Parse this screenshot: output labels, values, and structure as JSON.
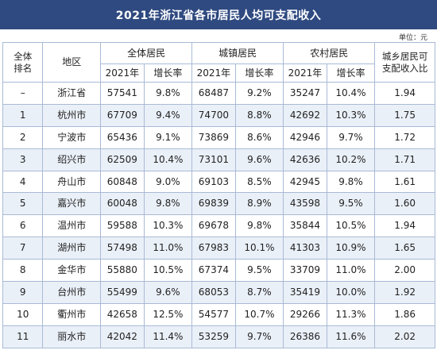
{
  "title": "2021年浙江省各市居民人均可支配收入",
  "unit": "单位：元",
  "headers": {
    "rank": "全体\n排名",
    "area": "地区",
    "all": "全体居民",
    "urban": "城镇居民",
    "rural": "农村居民",
    "ratio": "城乡居民可\n支配收入比",
    "year": "2021年",
    "growth": "增长率"
  },
  "rows": [
    {
      "rank": "–",
      "area": "浙江省",
      "all_y": "57541",
      "all_g": "9.8%",
      "urb_y": "68487",
      "urb_g": "9.2%",
      "rur_y": "35247",
      "rur_g": "10.4%",
      "ratio": "1.94"
    },
    {
      "rank": "1",
      "area": "杭州市",
      "all_y": "67709",
      "all_g": "9.4%",
      "urb_y": "74700",
      "urb_g": "8.8%",
      "rur_y": "42692",
      "rur_g": "10.3%",
      "ratio": "1.75"
    },
    {
      "rank": "2",
      "area": "宁波市",
      "all_y": "65436",
      "all_g": "9.1%",
      "urb_y": "73869",
      "urb_g": "8.6%",
      "rur_y": "42946",
      "rur_g": "9.7%",
      "ratio": "1.72"
    },
    {
      "rank": "3",
      "area": "绍兴市",
      "all_y": "62509",
      "all_g": "10.4%",
      "urb_y": "73101",
      "urb_g": "9.6%",
      "rur_y": "42636",
      "rur_g": "10.2%",
      "ratio": "1.71"
    },
    {
      "rank": "4",
      "area": "舟山市",
      "all_y": "60848",
      "all_g": "9.0%",
      "urb_y": "69103",
      "urb_g": "8.5%",
      "rur_y": "42945",
      "rur_g": "9.8%",
      "ratio": "1.61"
    },
    {
      "rank": "5",
      "area": "嘉兴市",
      "all_y": "60048",
      "all_g": "9.8%",
      "urb_y": "69839",
      "urb_g": "8.9%",
      "rur_y": "43598",
      "rur_g": "9.5%",
      "ratio": "1.60"
    },
    {
      "rank": "6",
      "area": "温州市",
      "all_y": "59588",
      "all_g": "10.3%",
      "urb_y": "69678",
      "urb_g": "9.8%",
      "rur_y": "35844",
      "rur_g": "10.5%",
      "ratio": "1.94"
    },
    {
      "rank": "7",
      "area": "湖州市",
      "all_y": "57498",
      "all_g": "11.0%",
      "urb_y": "67983",
      "urb_g": "10.1%",
      "rur_y": "41303",
      "rur_g": "10.9%",
      "ratio": "1.65"
    },
    {
      "rank": "8",
      "area": "金华市",
      "all_y": "55880",
      "all_g": "10.5%",
      "urb_y": "67374",
      "urb_g": "9.5%",
      "rur_y": "33709",
      "rur_g": "11.0%",
      "ratio": "2.00"
    },
    {
      "rank": "9",
      "area": "台州市",
      "all_y": "55499",
      "all_g": "9.6%",
      "urb_y": "68053",
      "urb_g": "8.7%",
      "rur_y": "35419",
      "rur_g": "10.0%",
      "ratio": "1.92"
    },
    {
      "rank": "10",
      "area": "衢州市",
      "all_y": "42658",
      "all_g": "12.5%",
      "urb_y": "54577",
      "urb_g": "10.7%",
      "rur_y": "29266",
      "rur_g": "11.3%",
      "ratio": "1.86"
    },
    {
      "rank": "11",
      "area": "丽水市",
      "all_y": "42042",
      "all_g": "11.4%",
      "urb_y": "53259",
      "urb_g": "9.7%",
      "rur_y": "26386",
      "rur_g": "11.6%",
      "ratio": "2.02"
    }
  ],
  "colors": {
    "title_bg": "#2f4a80",
    "row_alt_bg": "#eaf0f8",
    "grid_line": "#a9bad6"
  }
}
